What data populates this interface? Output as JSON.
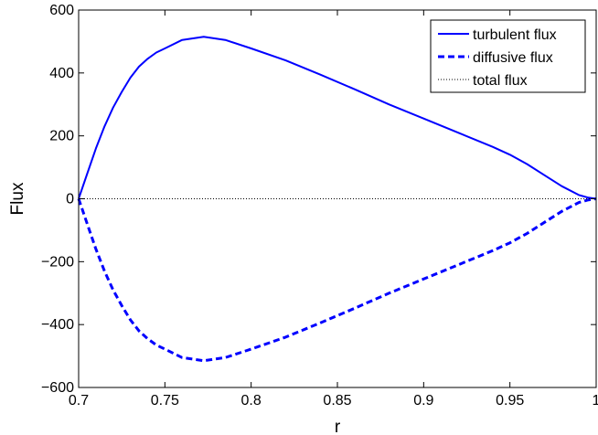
{
  "chart_data": {
    "type": "line",
    "xlabel": "r",
    "ylabel": "Flux",
    "xlim": [
      0.7,
      1.0
    ],
    "ylim": [
      -600,
      600
    ],
    "xticks": [
      0.7,
      0.75,
      0.8,
      0.85,
      0.9,
      0.95,
      1
    ],
    "xtick_labels": [
      "0.7",
      "0.75",
      "0.8",
      "0.85",
      "0.9",
      "0.95",
      "1"
    ],
    "yticks": [
      -600,
      -400,
      -200,
      0,
      200,
      400,
      600
    ],
    "ytick_labels": [
      "−600",
      "−400",
      "−200",
      "0",
      "200",
      "400",
      "600"
    ],
    "grid": false,
    "legend_position": "top-right",
    "series": [
      {
        "name": "turbulent flux",
        "color": "#0000ff",
        "style": "solid",
        "x": [
          0.7,
          0.705,
          0.71,
          0.715,
          0.72,
          0.725,
          0.73,
          0.735,
          0.74,
          0.745,
          0.75,
          0.76,
          0.7725,
          0.785,
          0.8,
          0.82,
          0.84,
          0.86,
          0.88,
          0.9,
          0.92,
          0.94,
          0.95,
          0.96,
          0.97,
          0.98,
          0.99,
          0.995,
          1.0
        ],
        "y": [
          0,
          80,
          160,
          230,
          290,
          340,
          385,
          420,
          445,
          465,
          478,
          505,
          515,
          505,
          478,
          440,
          395,
          348,
          300,
          255,
          210,
          165,
          140,
          110,
          75,
          40,
          12,
          4,
          0
        ]
      },
      {
        "name": "diffusive flux",
        "color": "#0000ff",
        "style": "dashed",
        "x": [
          0.7,
          0.705,
          0.71,
          0.715,
          0.72,
          0.725,
          0.73,
          0.735,
          0.74,
          0.745,
          0.75,
          0.76,
          0.7725,
          0.785,
          0.8,
          0.82,
          0.84,
          0.86,
          0.88,
          0.9,
          0.92,
          0.94,
          0.95,
          0.96,
          0.97,
          0.98,
          0.99,
          0.995,
          1.0
        ],
        "y": [
          0,
          -80,
          -160,
          -230,
          -290,
          -340,
          -385,
          -420,
          -445,
          -465,
          -478,
          -505,
          -515,
          -505,
          -478,
          -440,
          -395,
          -348,
          -300,
          -255,
          -210,
          -165,
          -140,
          -110,
          -75,
          -40,
          -12,
          -4,
          0
        ]
      },
      {
        "name": "total flux",
        "color": "#000000",
        "style": "dotted",
        "x": [
          0.7,
          0.8,
          0.9,
          1.0
        ],
        "y": [
          0,
          0,
          0,
          0
        ]
      }
    ]
  }
}
